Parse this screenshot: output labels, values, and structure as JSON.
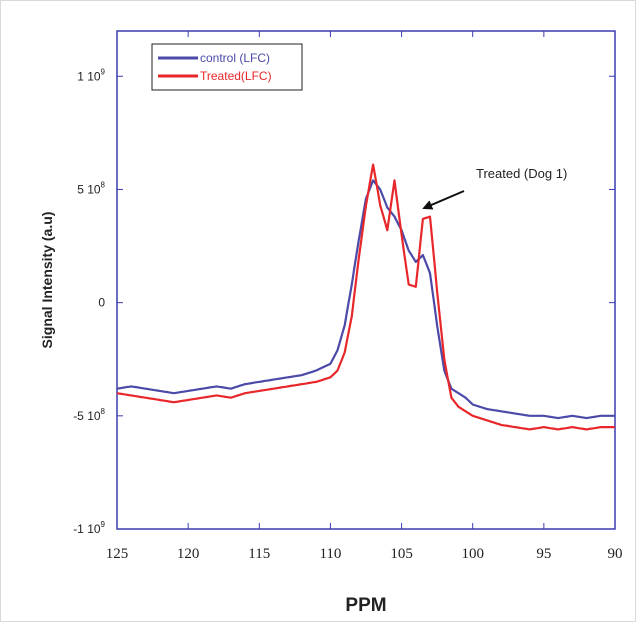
{
  "chart_data": {
    "type": "line",
    "title": "",
    "xlabel": "PPM",
    "ylabel": "Signal Intensity (a.u)",
    "xlim": [
      125,
      90
    ],
    "ylim": [
      -1000000000,
      1200000000
    ],
    "x_reversed": true,
    "x_ticks": [
      125,
      120,
      115,
      110,
      105,
      100,
      95,
      90
    ],
    "x_tick_labels": [
      "125",
      "120",
      "115",
      "110",
      "105",
      "100",
      "95",
      "90"
    ],
    "y_ticks": [
      1000000000,
      500000000,
      0,
      -500000000,
      -1000000000
    ],
    "y_tick_labels": [
      "1 10",
      "5 10",
      "0",
      "-5 10",
      "-1 10"
    ],
    "y_tick_superscripts": [
      "9",
      "8",
      "",
      "8",
      "9"
    ],
    "grid": false,
    "legend_position": "top-left",
    "series": [
      {
        "name": "control (LFC)",
        "color": "#4b4aa8",
        "x": [
          125,
          124,
          123,
          122,
          121,
          120,
          119,
          118,
          117,
          116,
          115,
          114,
          113,
          112,
          111,
          110,
          109.5,
          109,
          108.5,
          108,
          107.5,
          107,
          106.5,
          106,
          105.5,
          105,
          104.5,
          104,
          103.5,
          103,
          102.5,
          102,
          101.5,
          101,
          100.5,
          100,
          99,
          98,
          97,
          96,
          95,
          94,
          93,
          92,
          91,
          90
        ],
        "y": [
          -380000000,
          -370000000,
          -380000000,
          -390000000,
          -400000000,
          -390000000,
          -380000000,
          -370000000,
          -380000000,
          -360000000,
          -350000000,
          -340000000,
          -330000000,
          -320000000,
          -300000000,
          -270000000,
          -210000000,
          -100000000,
          80000000,
          280000000,
          460000000,
          540000000,
          500000000,
          420000000,
          380000000,
          320000000,
          230000000,
          180000000,
          210000000,
          130000000,
          -100000000,
          -300000000,
          -380000000,
          -400000000,
          -420000000,
          -450000000,
          -470000000,
          -480000000,
          -490000000,
          -500000000,
          -500000000,
          -510000000,
          -500000000,
          -510000000,
          -500000000,
          -500000000
        ]
      },
      {
        "name": "Treated(LFC)",
        "color": "#e8272b",
        "x": [
          125,
          124,
          123,
          122,
          121,
          120,
          119,
          118,
          117,
          116,
          115,
          114,
          113,
          112,
          111,
          110,
          109.5,
          109,
          108.5,
          108,
          107.5,
          107,
          106.5,
          106,
          105.5,
          105,
          104.5,
          104,
          103.5,
          103,
          102.5,
          102,
          101.5,
          101,
          100.5,
          100,
          99,
          98,
          97,
          96,
          95,
          94,
          93,
          92,
          91,
          90
        ],
        "y": [
          -400000000,
          -410000000,
          -420000000,
          -430000000,
          -440000000,
          -430000000,
          -420000000,
          -410000000,
          -420000000,
          -400000000,
          -390000000,
          -380000000,
          -370000000,
          -360000000,
          -350000000,
          -330000000,
          -300000000,
          -220000000,
          -60000000,
          200000000,
          430000000,
          610000000,
          430000000,
          320000000,
          540000000,
          300000000,
          80000000,
          70000000,
          370000000,
          380000000,
          50000000,
          -250000000,
          -420000000,
          -460000000,
          -480000000,
          -500000000,
          -520000000,
          -540000000,
          -550000000,
          -560000000,
          -550000000,
          -560000000,
          -550000000,
          -560000000,
          -550000000,
          -550000000
        ]
      }
    ],
    "annotations": [
      {
        "text": "Treated (Dog 1)",
        "target_x": 103.7,
        "target_y": 400000000
      }
    ]
  }
}
